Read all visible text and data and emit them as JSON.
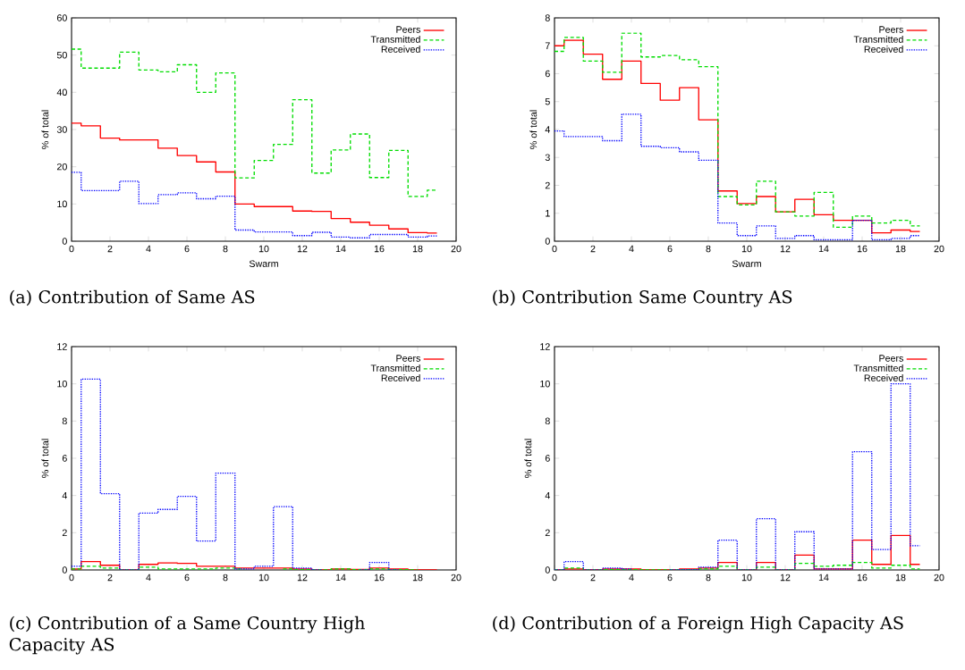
{
  "chart_data": [
    {
      "type": "step",
      "title": "(a) Contribution of Same AS",
      "xlabel": "Swarm",
      "ylabel": "% of total",
      "legend": "top right",
      "x": [
        0,
        1,
        2,
        3,
        4,
        5,
        6,
        7,
        8,
        9,
        10,
        11,
        12,
        13,
        14,
        15,
        16,
        17,
        18,
        19
      ],
      "xlim": [
        0,
        20
      ],
      "xticks": [
        0,
        2,
        4,
        6,
        8,
        10,
        12,
        14,
        16,
        18,
        20
      ],
      "ylim": [
        0,
        60
      ],
      "yticks": [
        0,
        10,
        20,
        30,
        40,
        50,
        60
      ],
      "series": [
        {
          "name": "Peers",
          "color": "#ff0000",
          "line_style": "solid",
          "values": [
            31.7,
            31,
            27.7,
            27.2,
            27.2,
            25,
            23,
            21.3,
            18.6,
            10,
            9.3,
            9.3,
            8.1,
            8.0,
            6.1,
            5.1,
            4.3,
            3.3,
            2.3,
            2.2
          ]
        },
        {
          "name": "Transmitted",
          "color": "#00dd00",
          "line_style": "dashed",
          "values": [
            51.6,
            46.5,
            46.5,
            50.8,
            46,
            45.5,
            47.4,
            40,
            45.2,
            17,
            21.7,
            26,
            38,
            18.3,
            24.5,
            28.8,
            17.1,
            24.4,
            12,
            13.7
          ]
        },
        {
          "name": "Received",
          "color": "#0000ff",
          "line_style": "dotted",
          "values": [
            18.5,
            13.6,
            13.6,
            16.1,
            10.1,
            12.5,
            13,
            11.4,
            12.1,
            3,
            2.5,
            2.5,
            1.5,
            2.4,
            1.1,
            0.9,
            1.8,
            1.8,
            1.1,
            1.4
          ]
        }
      ]
    },
    {
      "type": "step",
      "title": "(b) Contribution Same Country AS",
      "xlabel": "Swarm",
      "ylabel": "% of total",
      "legend": "top right",
      "x": [
        0,
        1,
        2,
        3,
        4,
        5,
        6,
        7,
        8,
        9,
        10,
        11,
        12,
        13,
        14,
        15,
        16,
        17,
        18,
        19
      ],
      "xlim": [
        0,
        20
      ],
      "xticks": [
        0,
        2,
        4,
        6,
        8,
        10,
        12,
        14,
        16,
        18,
        20
      ],
      "ylim": [
        0,
        8
      ],
      "yticks": [
        0,
        1,
        2,
        3,
        4,
        5,
        6,
        7,
        8
      ],
      "series": [
        {
          "name": "Peers",
          "color": "#ff0000",
          "line_style": "solid",
          "values": [
            7.0,
            7.2,
            6.7,
            5.8,
            6.45,
            5.65,
            5.05,
            5.5,
            4.35,
            1.8,
            1.35,
            1.6,
            1.05,
            1.5,
            0.95,
            0.75,
            0.75,
            0.3,
            0.4,
            0.35
          ]
        },
        {
          "name": "Transmitted",
          "color": "#00dd00",
          "line_style": "dashed",
          "values": [
            6.8,
            7.3,
            6.45,
            6.05,
            7.45,
            6.6,
            6.65,
            6.5,
            6.25,
            1.6,
            1.3,
            2.15,
            1.05,
            0.9,
            1.75,
            0.5,
            0.9,
            0.65,
            0.75,
            0.55
          ]
        },
        {
          "name": "Received",
          "color": "#0000ff",
          "line_style": "dotted",
          "values": [
            3.95,
            3.75,
            3.75,
            3.6,
            4.55,
            3.4,
            3.35,
            3.2,
            2.9,
            0.65,
            0.2,
            0.55,
            0.1,
            0.2,
            0.05,
            0.05,
            0.75,
            0.05,
            0.1,
            0.2
          ]
        }
      ]
    },
    {
      "type": "step",
      "title": "(c) Contribution of a Same Country High Capacity AS",
      "ylabel": "% of total",
      "legend": "top right",
      "x": [
        0,
        1,
        2,
        3,
        4,
        5,
        6,
        7,
        8,
        9,
        10,
        11,
        12,
        13,
        14,
        15,
        16,
        17,
        18,
        19
      ],
      "xlim": [
        0,
        20
      ],
      "xticks": [
        0,
        2,
        4,
        6,
        8,
        10,
        12,
        14,
        16,
        18,
        20
      ],
      "ylim": [
        0,
        12
      ],
      "yticks": [
        0,
        2,
        4,
        6,
        8,
        10,
        12
      ],
      "series": [
        {
          "name": "Peers",
          "color": "#ff0000",
          "line_style": "solid",
          "values": [
            0.05,
            0.45,
            0.25,
            0,
            0.3,
            0.38,
            0.35,
            0.2,
            0.2,
            0.1,
            0.1,
            0.1,
            0.05,
            0,
            0.05,
            0.03,
            0.1,
            0.05,
            0,
            0
          ]
        },
        {
          "name": "Transmitted",
          "color": "#00dd00",
          "line_style": "dashed",
          "values": [
            0.05,
            0.2,
            0.1,
            0,
            0.15,
            0.05,
            0.05,
            0.05,
            0.1,
            0.05,
            null,
            0.05,
            0.02,
            0,
            0.05,
            0.02,
            0.05,
            0.02,
            0,
            null
          ]
        },
        {
          "name": "Received",
          "color": "#0000ff",
          "line_style": "dotted",
          "values": [
            0.2,
            10.25,
            4.1,
            0,
            3.05,
            3.25,
            3.95,
            1.55,
            5.2,
            0.05,
            0.2,
            3.4,
            0.1,
            0,
            null,
            0,
            0.4,
            0,
            null,
            null
          ]
        }
      ]
    },
    {
      "type": "step",
      "title": "(d) Contribution of a Foreign High Capacity AS",
      "ylabel": "% of total",
      "legend": "top right",
      "x": [
        0,
        1,
        2,
        3,
        4,
        5,
        6,
        7,
        8,
        9,
        10,
        11,
        12,
        13,
        14,
        15,
        16,
        17,
        18,
        19
      ],
      "xlim": [
        0,
        20
      ],
      "xticks": [
        0,
        2,
        4,
        6,
        8,
        10,
        12,
        14,
        16,
        18,
        20
      ],
      "ylim": [
        0,
        12
      ],
      "yticks": [
        0,
        2,
        4,
        6,
        8,
        10,
        12
      ],
      "series": [
        {
          "name": "Peers",
          "color": "#ff0000",
          "line_style": "solid",
          "values": [
            0,
            0.05,
            0.02,
            0.05,
            0.05,
            0,
            0,
            0.05,
            0.1,
            0.4,
            0,
            0.4,
            0,
            0.8,
            0.05,
            0.05,
            1.6,
            0.3,
            1.85,
            0.3
          ]
        },
        {
          "name": "Transmitted",
          "color": "#00dd00",
          "line_style": "dashed",
          "values": [
            0,
            0.1,
            0,
            0.02,
            0.02,
            0,
            0,
            0.02,
            0.05,
            0.2,
            0,
            0.15,
            0,
            0.35,
            0.2,
            0.25,
            0.4,
            0.1,
            0.25,
            0.05
          ]
        },
        {
          "name": "Received",
          "color": "#0000ff",
          "line_style": "dotted",
          "values": [
            0,
            0.45,
            0,
            0.1,
            0.05,
            null,
            0,
            0.02,
            0.15,
            1.6,
            0,
            2.75,
            0,
            2.05,
            0.05,
            0.05,
            6.35,
            1.1,
            10,
            1.3
          ]
        }
      ]
    }
  ]
}
